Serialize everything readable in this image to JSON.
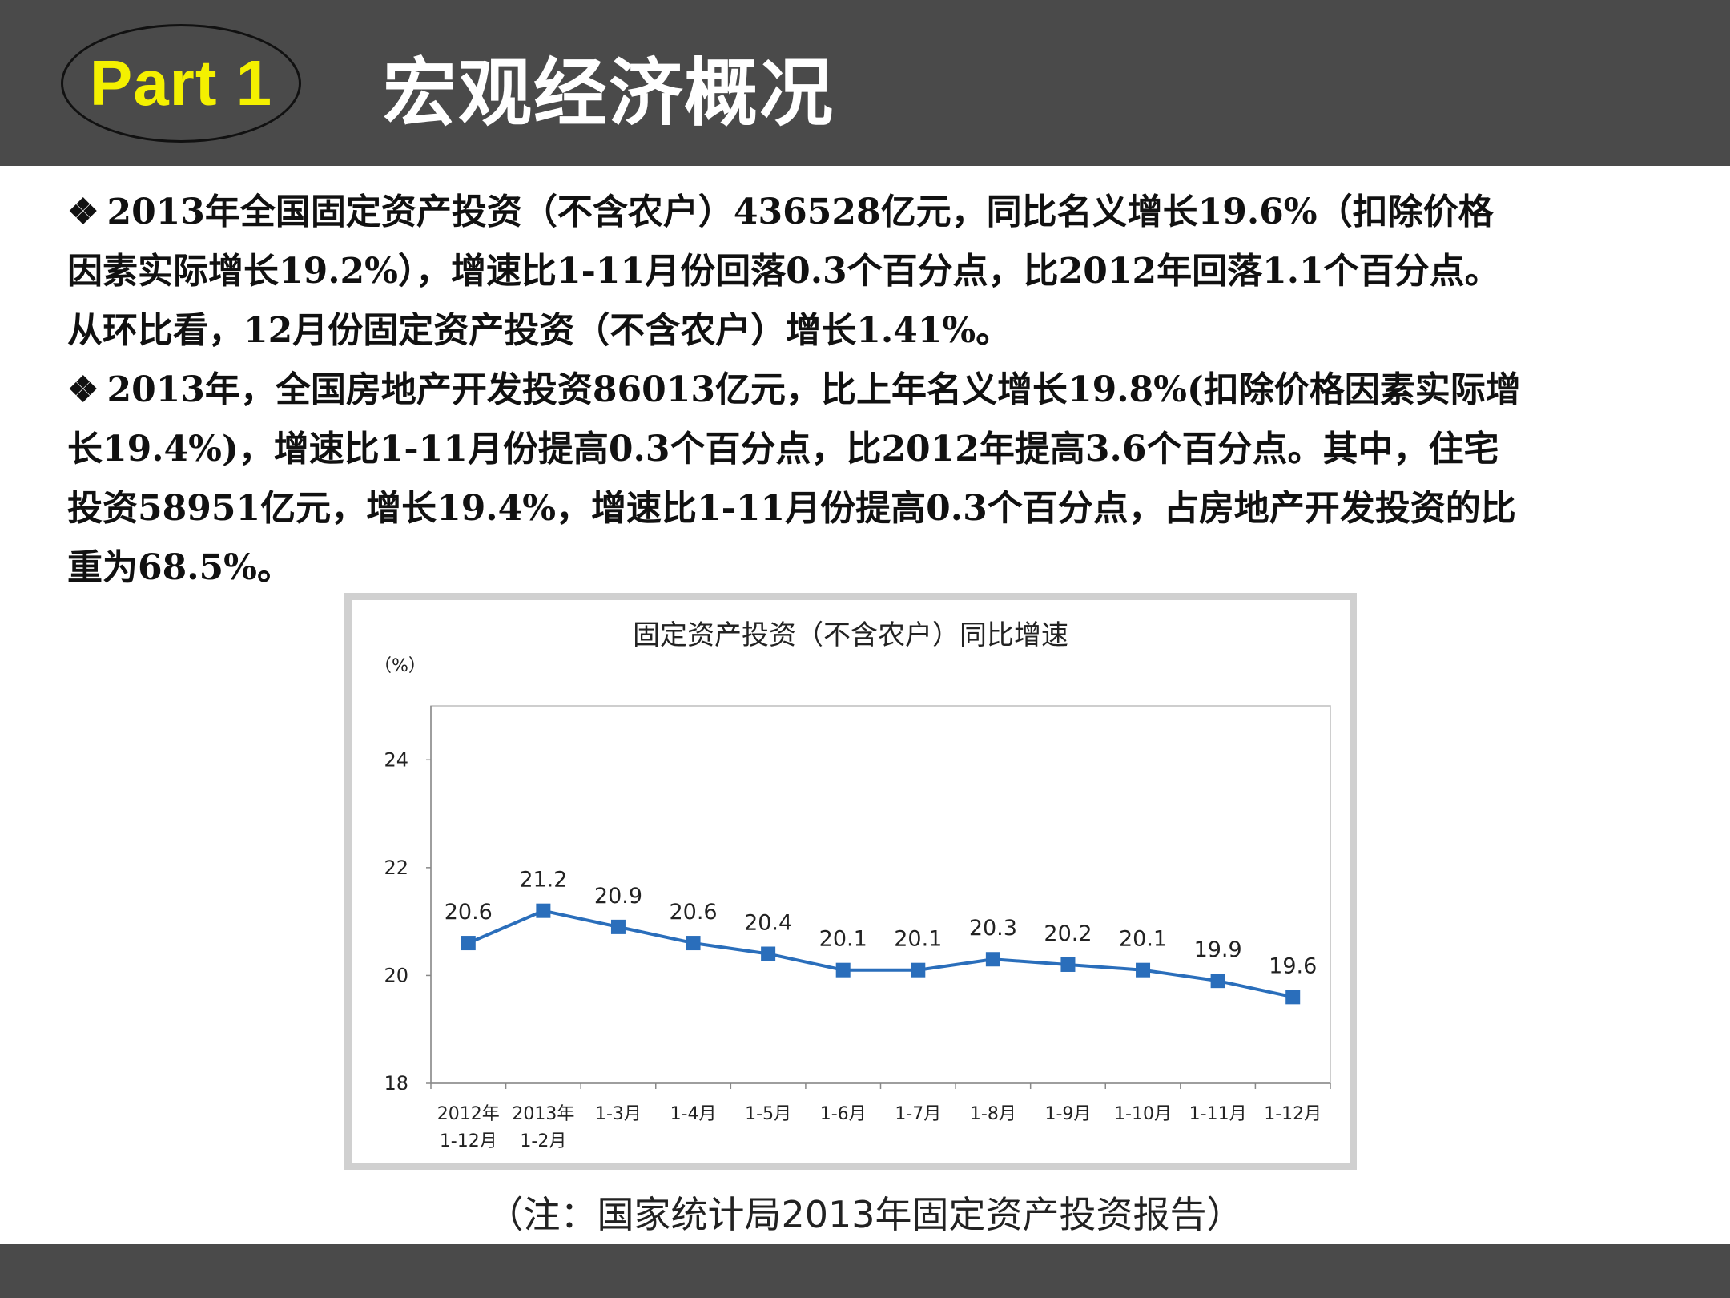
{
  "header": {
    "part_label": "Part 1",
    "title": "宏观经济概况"
  },
  "paragraphs": [
    {
      "bullet": "❖",
      "lines": [
        "2013年全国固定资产投资（不含农户）436528亿元，同比名义增长19.6%（扣除价格",
        "因素实际增长19.2%），增速比1-11月份回落0.3个百分点，比2012年回落1.1个百分点。",
        "从环比看，12月份固定资产投资（不含农户）增长1.41%。"
      ]
    },
    {
      "bullet": "❖",
      "lines": [
        "2013年，全国房地产开发投资86013亿元，比上年名义增长19.8%(扣除价格因素实际增",
        "长19.4%)，增速比1-11月份提高0.3个百分点，比2012年提高3.6个百分点。其中，住宅",
        "投资58951亿元，增长19.4%，增速比1-11月份提高0.3个百分点，占房地产开发投资的比",
        "重为68.5%。"
      ]
    }
  ],
  "chart_data": {
    "type": "line",
    "title": "固定资产投资（不含农户）同比增速",
    "ylabel": "（%）",
    "xlabel": "",
    "ylim": [
      18,
      25
    ],
    "yticks": [
      18,
      20,
      22,
      24
    ],
    "grid": false,
    "categories": [
      [
        "2012年",
        "1-12月"
      ],
      [
        "2013年",
        "1-2月"
      ],
      [
        "1-3月"
      ],
      [
        "1-4月"
      ],
      [
        "1-5月"
      ],
      [
        "1-6月"
      ],
      [
        "1-7月"
      ],
      [
        "1-8月"
      ],
      [
        "1-9月"
      ],
      [
        "1-10月"
      ],
      [
        "1-11月"
      ],
      [
        "1-12月"
      ]
    ],
    "series": [
      {
        "values": [
          20.6,
          21.2,
          20.9,
          20.6,
          20.4,
          20.1,
          20.1,
          20.3,
          20.2,
          20.1,
          19.9,
          19.6
        ],
        "data_labels": [
          "20.6",
          "21.2",
          "20.9",
          "20.6",
          "20.4",
          "20.1",
          "20.1",
          "20.3",
          "20.2",
          "20.1",
          "19.9",
          "19.6"
        ],
        "color": "#2a6ebb",
        "marker": "square"
      }
    ]
  },
  "footnote": "（注：国家统计局2013年固定资产投资报告）",
  "colors": {
    "header_bg": "#4a4a4a",
    "part_text": "#f4f000",
    "series_line": "#2a6ebb"
  }
}
